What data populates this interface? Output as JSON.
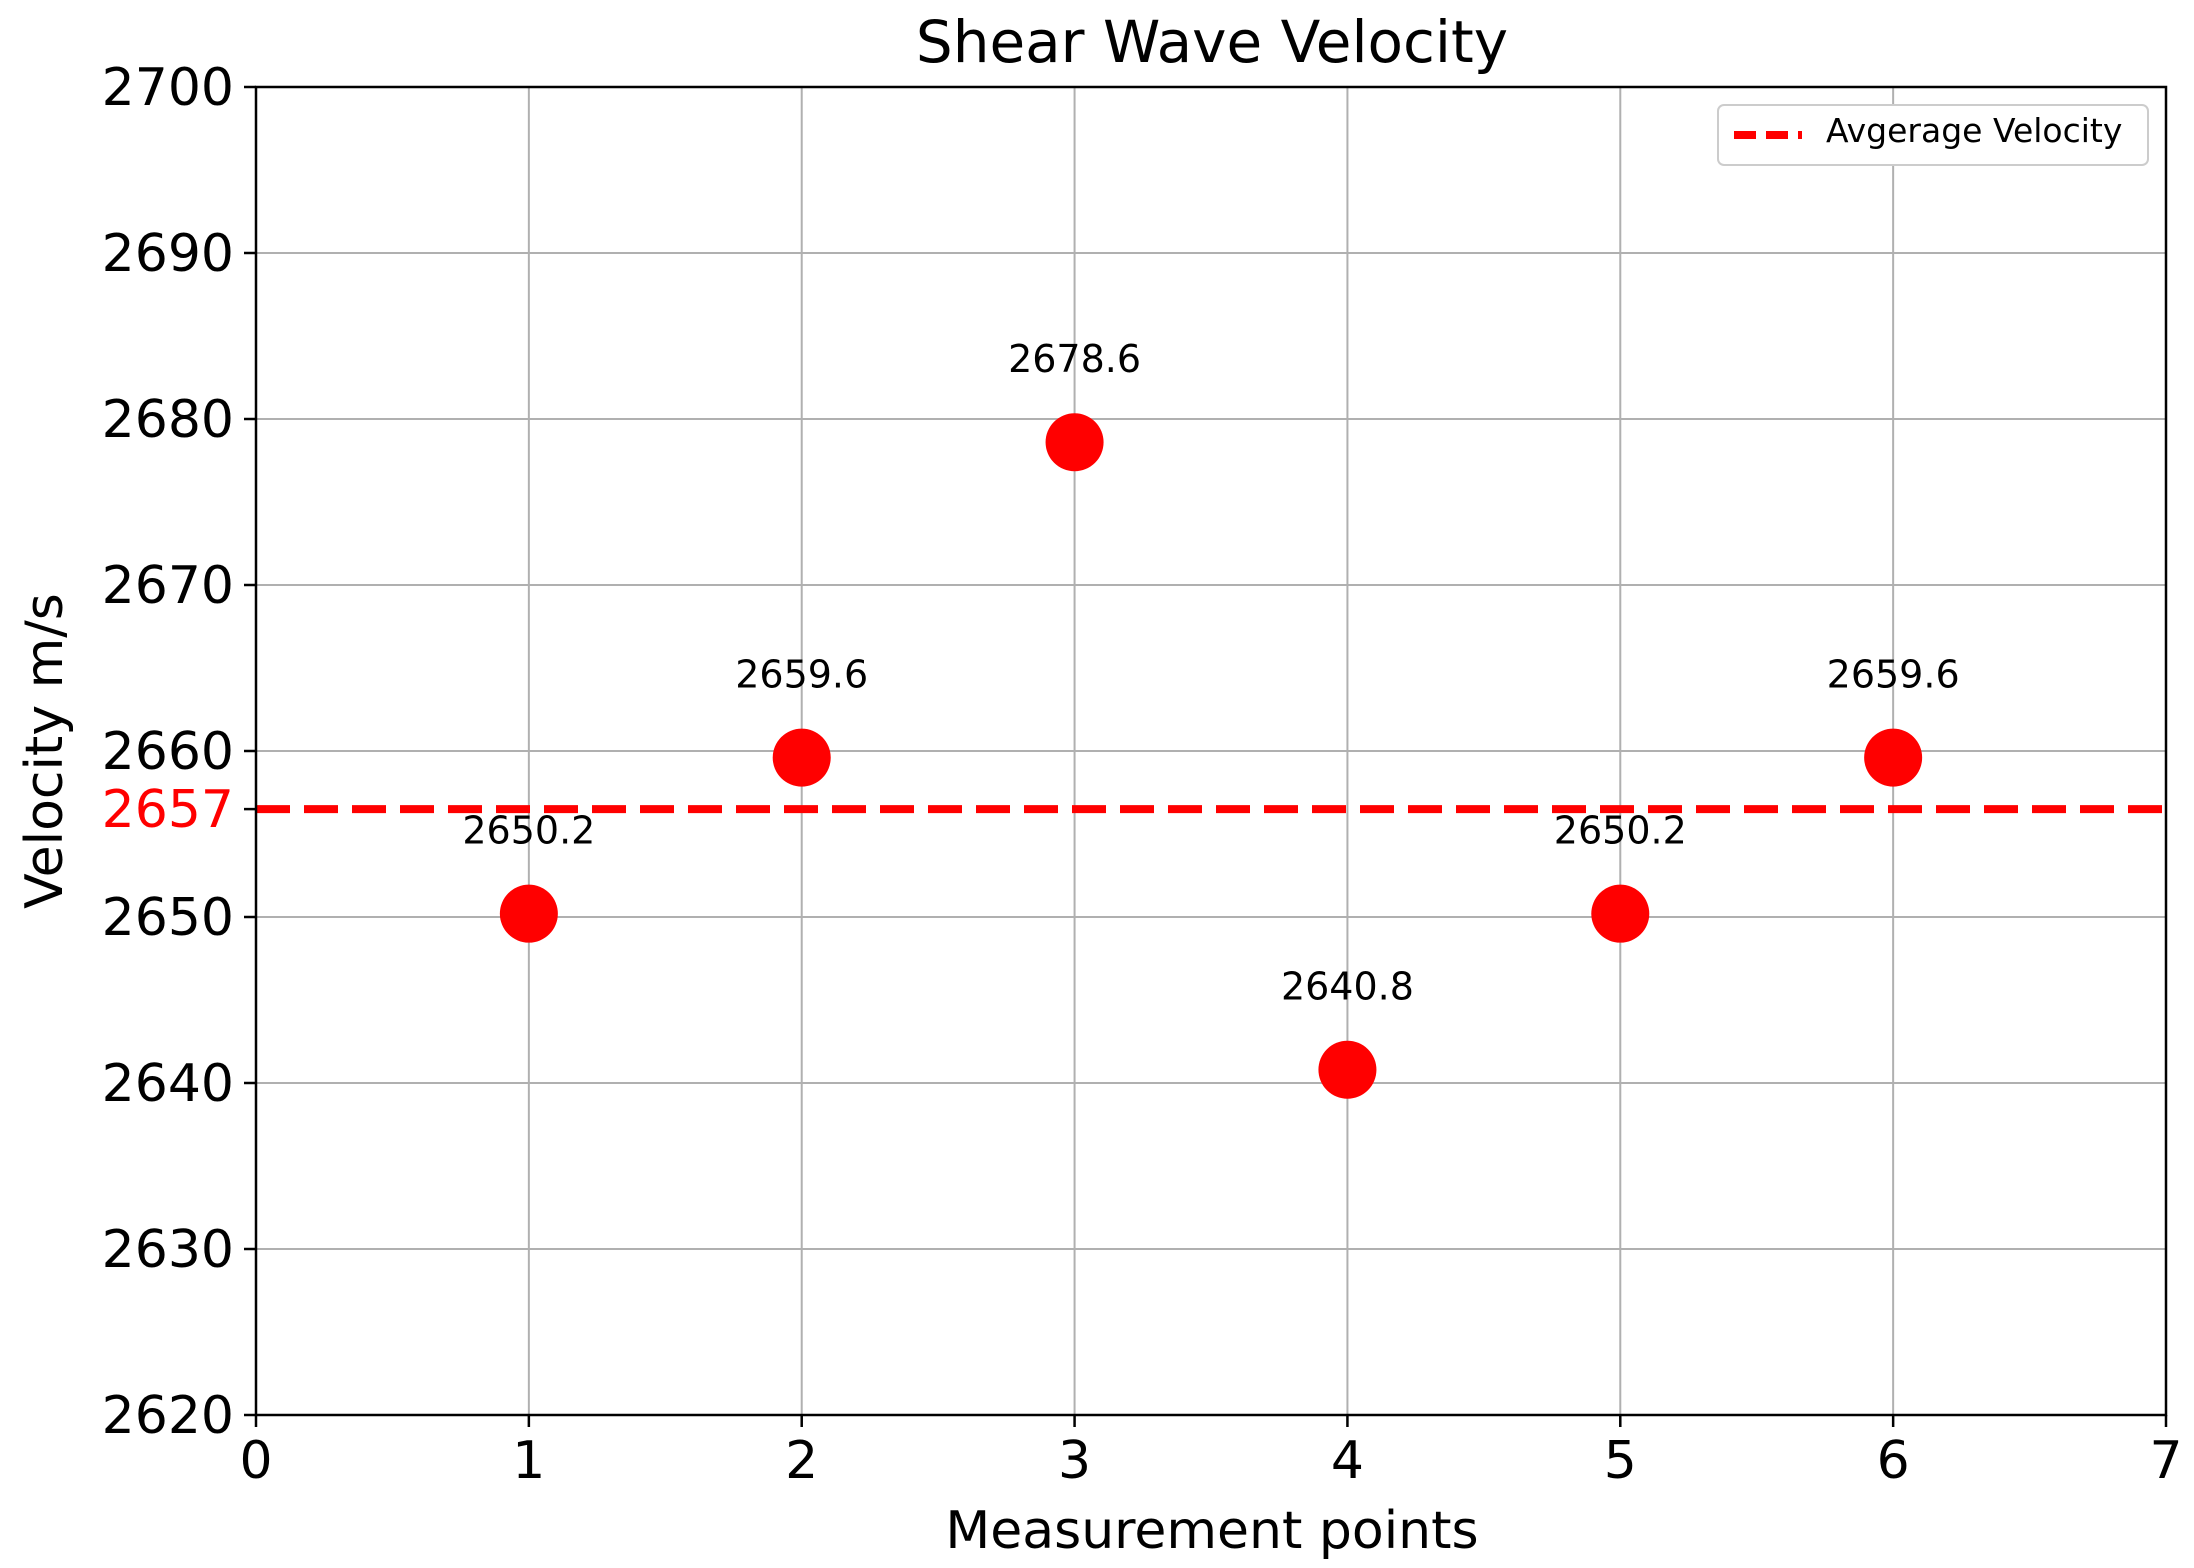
{
  "chart_data": {
    "type": "scatter",
    "title": "Shear Wave Velocity",
    "xlabel": "Measurement points",
    "ylabel": "Velocity m/s",
    "xlim": [
      0,
      7
    ],
    "ylim": [
      2620,
      2700
    ],
    "x_ticks": [
      "0",
      "1",
      "2",
      "3",
      "4",
      "5",
      "6",
      "7"
    ],
    "y_ticks": [
      "2620",
      "2630",
      "2640",
      "2650",
      "2660",
      "2670",
      "2680",
      "2690",
      "2700"
    ],
    "grid": true,
    "series": [
      {
        "color": "#ff0000",
        "points": [
          {
            "x": 1,
            "y": 2650.2,
            "label": "2650.2"
          },
          {
            "x": 2,
            "y": 2659.6,
            "label": "2659.6"
          },
          {
            "x": 3,
            "y": 2678.6,
            "label": "2678.6"
          },
          {
            "x": 4,
            "y": 2640.8,
            "label": "2640.8"
          },
          {
            "x": 5,
            "y": 2650.2,
            "label": "2650.2"
          },
          {
            "x": 6,
            "y": 2659.6,
            "label": "2659.6"
          }
        ]
      }
    ],
    "average_line": {
      "name": "Avgerage Velocity",
      "value": 2656.5,
      "tick_label": "2657",
      "color": "#ff0000",
      "style": "dashed"
    },
    "legend": {
      "position": "top-right",
      "entries": [
        "Avgerage Velocity"
      ]
    }
  }
}
